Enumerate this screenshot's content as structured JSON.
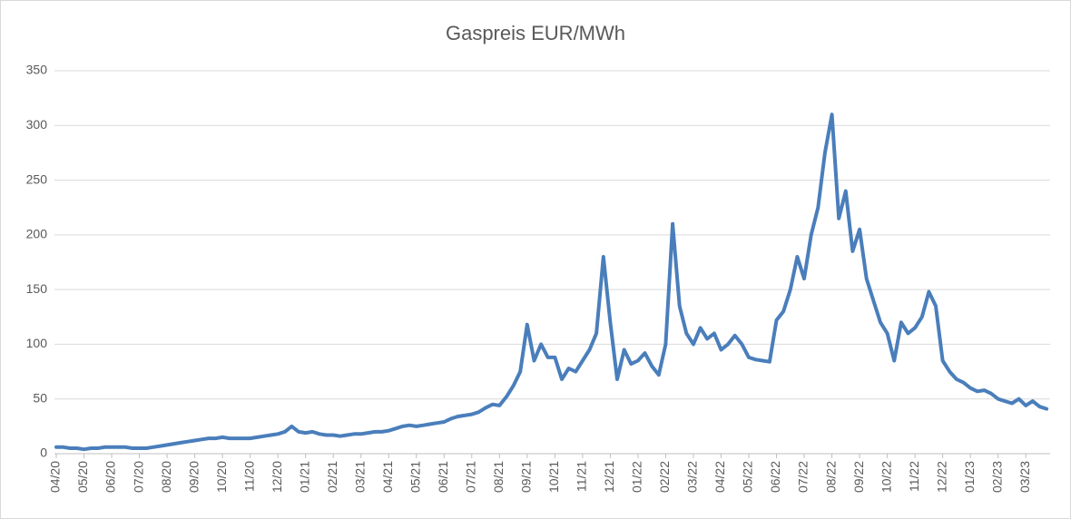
{
  "chart_data": {
    "type": "line",
    "title": "Gaspreis EUR/MWh",
    "categories": [
      "04/20",
      null,
      null,
      null,
      "05/20",
      null,
      null,
      null,
      "06/20",
      null,
      null,
      null,
      "07/20",
      null,
      null,
      null,
      "08/20",
      null,
      null,
      null,
      "09/20",
      null,
      null,
      null,
      "10/20",
      null,
      null,
      null,
      "11/20",
      null,
      null,
      null,
      "12/20",
      null,
      null,
      null,
      "01/21",
      null,
      null,
      null,
      "02/21",
      null,
      null,
      null,
      "03/21",
      null,
      null,
      null,
      "04/21",
      null,
      null,
      null,
      "05/21",
      null,
      null,
      null,
      "06/21",
      null,
      null,
      null,
      "07/21",
      null,
      null,
      null,
      "08/21",
      null,
      null,
      null,
      "09/21",
      null,
      null,
      null,
      "10/21",
      null,
      null,
      null,
      "11/21",
      null,
      null,
      null,
      "12/21",
      null,
      null,
      null,
      "01/22",
      null,
      null,
      null,
      "02/22",
      null,
      null,
      null,
      "03/22",
      null,
      null,
      null,
      "04/22",
      null,
      null,
      null,
      "05/22",
      null,
      null,
      null,
      "06/22",
      null,
      null,
      null,
      "07/22",
      null,
      null,
      null,
      "08/22",
      null,
      null,
      null,
      "09/22",
      null,
      null,
      null,
      "10/22",
      null,
      null,
      null,
      "11/22",
      null,
      null,
      null,
      "12/22",
      null,
      null,
      null,
      "01/23",
      null,
      null,
      null,
      "02/23",
      null,
      null,
      null,
      "03/23",
      null,
      null,
      null
    ],
    "series": [
      {
        "color": "#4a7ebb",
        "values": [
          6,
          6,
          5,
          5,
          4,
          5,
          5,
          6,
          6,
          6,
          6,
          5,
          5,
          5,
          6,
          7,
          8,
          9,
          10,
          11,
          12,
          13,
          14,
          14,
          15,
          14,
          14,
          14,
          14,
          15,
          16,
          17,
          18,
          20,
          25,
          20,
          19,
          20,
          18,
          17,
          17,
          16,
          17,
          18,
          18,
          19,
          20,
          20,
          21,
          23,
          25,
          26,
          25,
          26,
          27,
          28,
          29,
          32,
          34,
          35,
          36,
          38,
          42,
          45,
          44,
          52,
          62,
          75,
          118,
          85,
          100,
          88,
          88,
          68,
          78,
          75,
          85,
          95,
          110,
          180,
          120,
          68,
          95,
          82,
          85,
          92,
          80,
          72,
          100,
          210,
          135,
          110,
          100,
          115,
          105,
          110,
          95,
          100,
          108,
          100,
          88,
          86,
          85,
          84,
          122,
          130,
          150,
          180,
          160,
          200,
          225,
          275,
          310,
          215,
          240,
          185,
          205,
          160,
          140,
          120,
          110,
          85,
          120,
          110,
          115,
          125,
          148,
          135,
          85,
          75,
          68,
          65,
          60,
          57,
          58,
          55,
          50,
          48,
          46,
          50,
          44,
          48,
          43,
          41
        ]
      }
    ],
    "ylim": [
      0,
      350
    ],
    "yticks": [
      0,
      50,
      100,
      150,
      200,
      250,
      300,
      350
    ],
    "grid": true
  }
}
